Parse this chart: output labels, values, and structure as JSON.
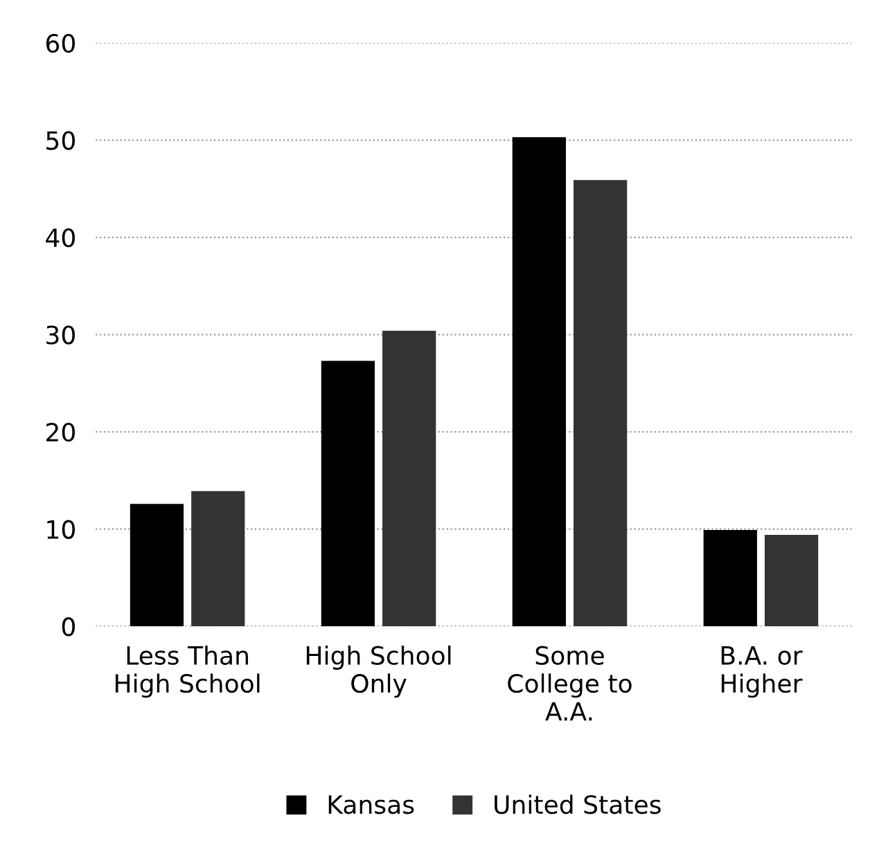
{
  "chart_data": {
    "type": "bar",
    "categories": [
      "Less Than\nHigh School",
      "High School\nOnly",
      "Some\nCollege to\nA.A.",
      "B.A. or\nHigher"
    ],
    "series": [
      {
        "name": "Kansas",
        "color": "#000000",
        "values": [
          12.6,
          27.3,
          50.3,
          9.9
        ]
      },
      {
        "name": "United States",
        "color": "#333333",
        "values": [
          13.9,
          30.4,
          45.9,
          9.4
        ]
      }
    ],
    "ylim": [
      0,
      60
    ],
    "yticks": [
      0,
      10,
      20,
      30,
      40,
      50,
      60
    ],
    "grid": "y",
    "legend": "bottom"
  }
}
